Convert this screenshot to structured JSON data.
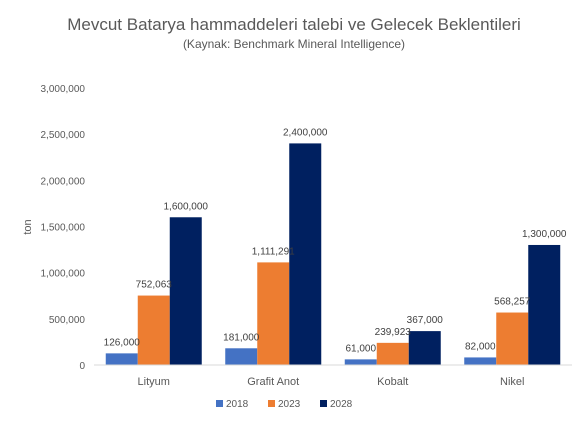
{
  "chart_data": {
    "type": "bar",
    "title": "Mevcut Batarya hammaddeleri talebi ve Gelecek Beklentileri",
    "subtitle": "(Kaynak: Benchmark Mineral Intelligence)",
    "xlabel": "",
    "ylabel": "ton",
    "ylim": [
      0,
      3000000
    ],
    "yticks": [
      0,
      500000,
      1000000,
      1500000,
      2000000,
      2500000,
      3000000
    ],
    "ytick_labels": [
      "0",
      "500,000",
      "1,000,000",
      "1,500,000",
      "2,000,000",
      "2,500,000",
      "3,000,000"
    ],
    "grid": false,
    "legend_position": "bottom",
    "categories": [
      "Lityum",
      "Grafit Anot",
      "Kobalt",
      "Nikel"
    ],
    "series": [
      {
        "name": "2018",
        "color": "#4472c4",
        "values": [
          126000,
          181000,
          61000,
          82000
        ],
        "labels": [
          "126,000",
          "181,000",
          "61,000",
          "82,000"
        ]
      },
      {
        "name": "2023",
        "color": "#ed7d31",
        "values": [
          752063,
          1111291,
          239923,
          568257
        ],
        "labels": [
          "752,063",
          "1,111,291",
          "239,923",
          "568,257"
        ]
      },
      {
        "name": "2028",
        "color": "#002060",
        "values": [
          1600000,
          2400000,
          367000,
          1300000
        ],
        "labels": [
          "1,600,000",
          "2,400,000",
          "367,000",
          "1,300,000"
        ]
      }
    ]
  }
}
